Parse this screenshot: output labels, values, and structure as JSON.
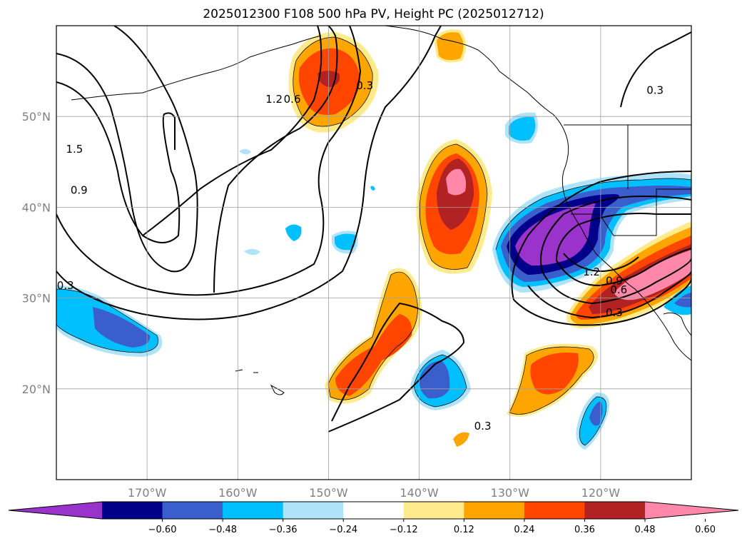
{
  "title": "2025012300 F108 500 hPa PV, Height PC (2025012712)",
  "map": {
    "lon_range": [
      -180,
      -110
    ],
    "lat_range": [
      10,
      60
    ],
    "lat_ticks": [
      {
        "lat": 50,
        "label": "50°N"
      },
      {
        "lat": 40,
        "label": "40°N"
      },
      {
        "lat": 30,
        "label": "30°N"
      },
      {
        "lat": 20,
        "label": "20°N"
      }
    ],
    "lon_ticks": [
      {
        "lon": -170,
        "label": "170°W"
      },
      {
        "lon": -160,
        "label": "160°W"
      },
      {
        "lon": -150,
        "label": "150°W"
      },
      {
        "lon": -140,
        "label": "140°W"
      },
      {
        "lon": -130,
        "label": "130°W"
      },
      {
        "lon": -120,
        "label": "120°W"
      }
    ],
    "grid": true
  },
  "contour_labels": [
    {
      "text": "1.5",
      "lon": -178.0,
      "lat": 46.0
    },
    {
      "text": "0.9",
      "lon": -177.5,
      "lat": 41.5
    },
    {
      "text": "0.3",
      "lon": -179.0,
      "lat": 31.0
    },
    {
      "text": "1.2",
      "lon": -156.0,
      "lat": 51.5
    },
    {
      "text": "0.6",
      "lon": -154.0,
      "lat": 51.5
    },
    {
      "text": "0.3",
      "lon": -146.0,
      "lat": 53.0
    },
    {
      "text": "0.3",
      "lon": -133.0,
      "lat": 15.5
    },
    {
      "text": "0.3",
      "lon": -114.0,
      "lat": 52.5
    },
    {
      "text": "1.2",
      "lon": -121.0,
      "lat": 32.5
    },
    {
      "text": "0.9",
      "lon": -118.5,
      "lat": 31.5
    },
    {
      "text": "0.6",
      "lon": -118.0,
      "lat": 30.5
    },
    {
      "text": "0.3",
      "lon": -118.5,
      "lat": 28.0
    }
  ],
  "colorbar": {
    "colors": [
      "#9933cc",
      "#00008b",
      "#3a5fcd",
      "#00bfff",
      "#afe3fa",
      "#ffffff",
      "#ffeb8c",
      "#ffa500",
      "#ff4500",
      "#b22222",
      "#ff88aa"
    ],
    "ticks": [
      "−0.60",
      "−0.48",
      "−0.36",
      "−0.24",
      "−0.12",
      "0.12",
      "0.24",
      "0.36",
      "0.48",
      "0.60"
    ]
  }
}
